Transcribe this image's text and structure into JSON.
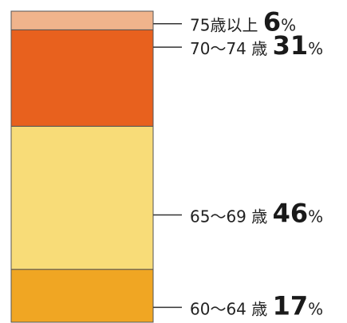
{
  "chart_data": {
    "type": "bar",
    "stacked": true,
    "orientation": "vertical",
    "unit": "%",
    "title": "",
    "xlabel": "",
    "ylabel": "",
    "ylim": [
      0,
      100
    ],
    "grid": false,
    "segments": [
      {
        "label": "60〜64 歳",
        "value": 17,
        "color": "#f0a623"
      },
      {
        "label": "65〜69 歳",
        "value": 46,
        "color": "#f8dc78"
      },
      {
        "label": "70〜74 歳",
        "value": 31,
        "color": "#e8611e"
      },
      {
        "label": "75歳以上",
        "value": 6,
        "color": "#f0b48c"
      }
    ]
  }
}
